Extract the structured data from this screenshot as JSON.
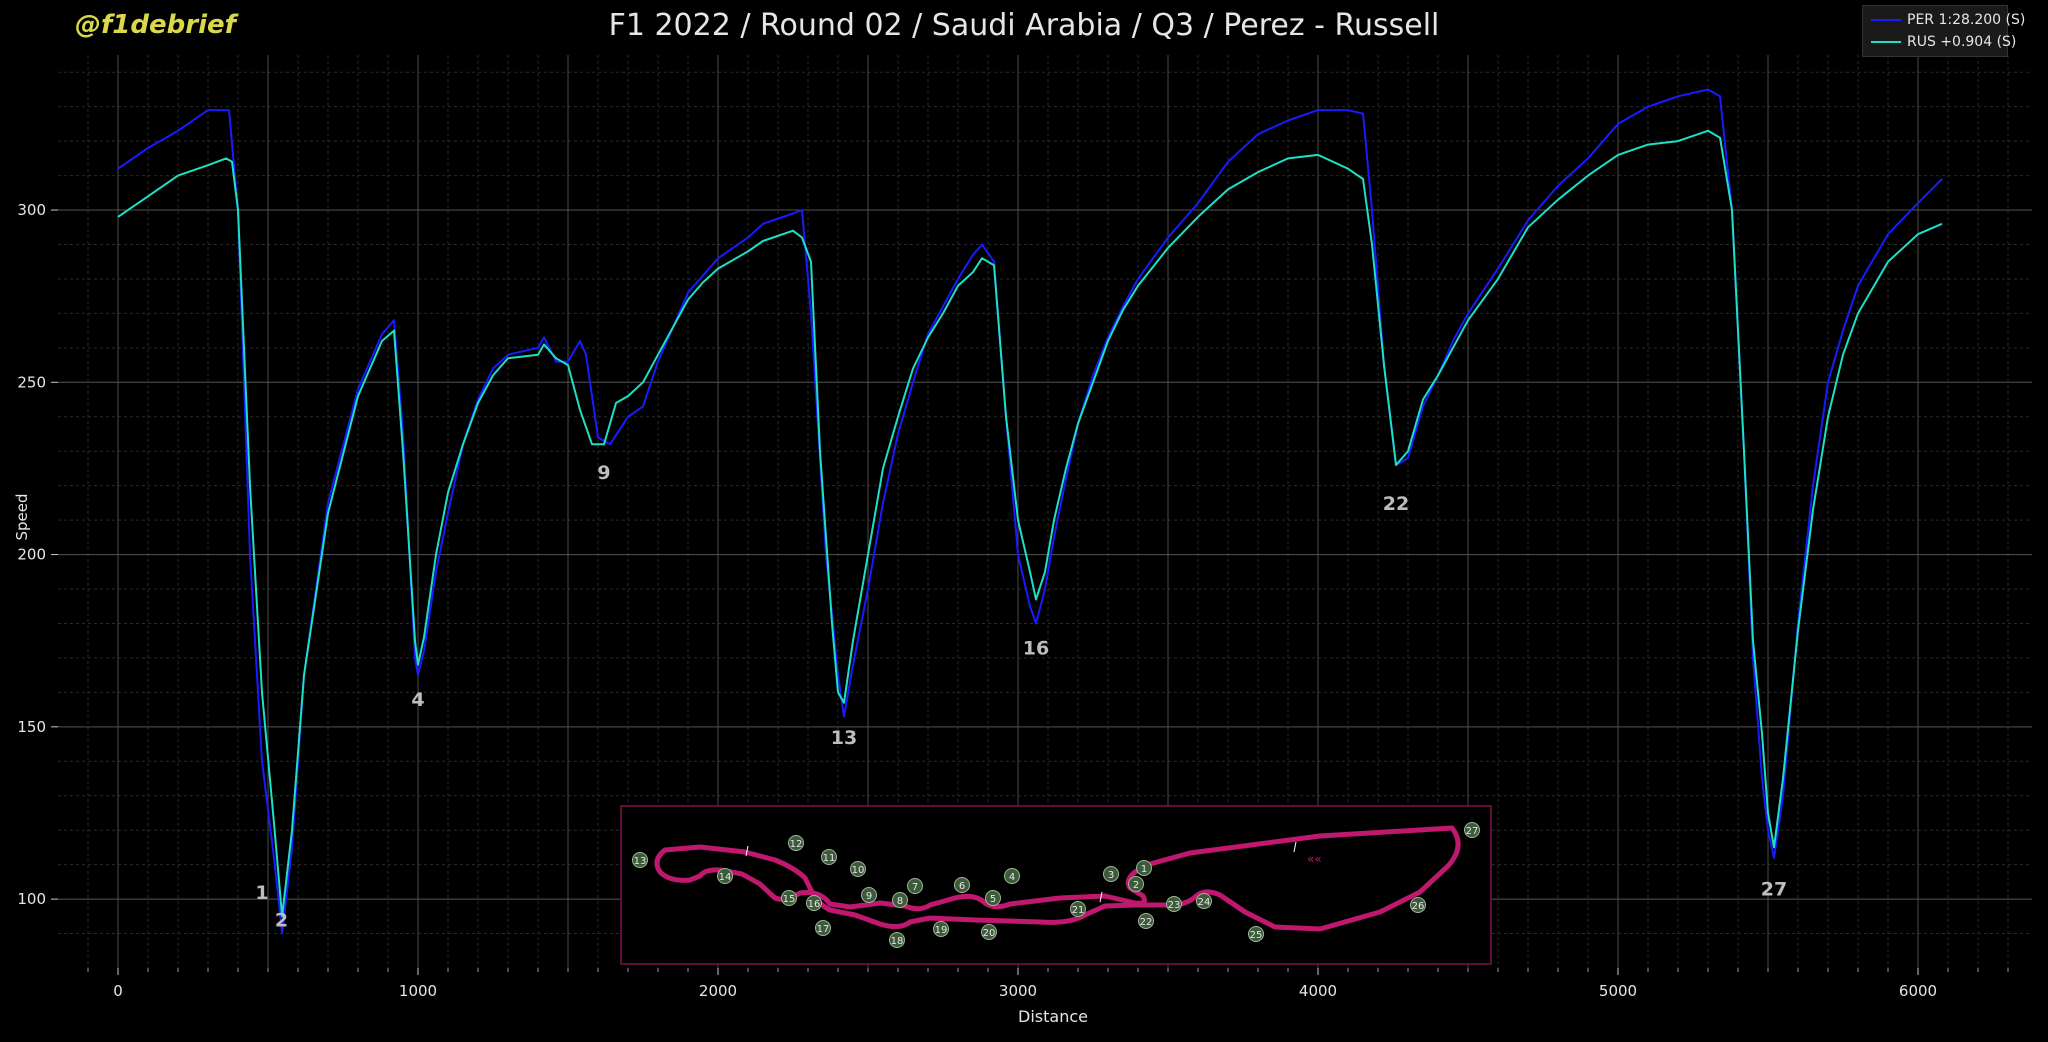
{
  "header": {
    "brand": "@f1debrief",
    "title": "F1 2022 / Round 02 / Saudi Arabia / Q3 / Perez - Russell"
  },
  "colors": {
    "background": "#000000",
    "per": "#1a1aff",
    "rus": "#1de0c4",
    "track": "#c0186f",
    "corner_marker": "#3d5a3a",
    "brand": "#d9d94a"
  },
  "chart_data": {
    "type": "line",
    "title": "F1 2022 / Round 02 / Saudi Arabia / Q3 / Perez - Russell",
    "xlabel": "Distance",
    "ylabel": "Speed",
    "xlim": [
      -200,
      6380
    ],
    "ylim": [
      80,
      345
    ],
    "xticks": [
      0,
      1000,
      2000,
      3000,
      4000,
      5000,
      6000
    ],
    "yticks": [
      100,
      150,
      200,
      250,
      300
    ],
    "grid": true,
    "legend_position": "top-right",
    "series": [
      {
        "name": "PER 1:28.200 (S)",
        "color": "#1a1aff",
        "points": [
          [
            0,
            312
          ],
          [
            100,
            318
          ],
          [
            200,
            323
          ],
          [
            300,
            329
          ],
          [
            370,
            329
          ],
          [
            400,
            300
          ],
          [
            440,
            200
          ],
          [
            480,
            140
          ],
          [
            520,
            112
          ],
          [
            547,
            90
          ],
          [
            580,
            115
          ],
          [
            620,
            165
          ],
          [
            700,
            215
          ],
          [
            800,
            248
          ],
          [
            880,
            264
          ],
          [
            920,
            268
          ],
          [
            950,
            235
          ],
          [
            990,
            170
          ],
          [
            1000,
            165
          ],
          [
            1020,
            172
          ],
          [
            1060,
            195
          ],
          [
            1100,
            212
          ],
          [
            1150,
            232
          ],
          [
            1200,
            245
          ],
          [
            1250,
            254
          ],
          [
            1300,
            258
          ],
          [
            1400,
            260
          ],
          [
            1420,
            263
          ],
          [
            1460,
            256
          ],
          [
            1500,
            256
          ],
          [
            1540,
            262
          ],
          [
            1560,
            258
          ],
          [
            1600,
            234
          ],
          [
            1640,
            232
          ],
          [
            1700,
            240
          ],
          [
            1750,
            243
          ],
          [
            1800,
            256
          ],
          [
            1850,
            266
          ],
          [
            1900,
            276
          ],
          [
            1950,
            281
          ],
          [
            2000,
            286
          ],
          [
            2100,
            292
          ],
          [
            2150,
            296
          ],
          [
            2250,
            299
          ],
          [
            2280,
            300
          ],
          [
            2310,
            270
          ],
          [
            2360,
            200
          ],
          [
            2400,
            165
          ],
          [
            2420,
            153
          ],
          [
            2450,
            168
          ],
          [
            2500,
            190
          ],
          [
            2550,
            215
          ],
          [
            2600,
            235
          ],
          [
            2650,
            250
          ],
          [
            2700,
            264
          ],
          [
            2750,
            272
          ],
          [
            2800,
            280
          ],
          [
            2850,
            287
          ],
          [
            2880,
            290
          ],
          [
            2920,
            285
          ],
          [
            2960,
            240
          ],
          [
            3000,
            200
          ],
          [
            3040,
            185
          ],
          [
            3060,
            180
          ],
          [
            3090,
            190
          ],
          [
            3120,
            205
          ],
          [
            3160,
            222
          ],
          [
            3200,
            238
          ],
          [
            3250,
            252
          ],
          [
            3300,
            263
          ],
          [
            3350,
            272
          ],
          [
            3400,
            280
          ],
          [
            3500,
            292
          ],
          [
            3600,
            302
          ],
          [
            3700,
            314
          ],
          [
            3800,
            322
          ],
          [
            3900,
            326
          ],
          [
            4000,
            329
          ],
          [
            4100,
            329
          ],
          [
            4150,
            328
          ],
          [
            4180,
            300
          ],
          [
            4220,
            255
          ],
          [
            4260,
            226
          ],
          [
            4300,
            228
          ],
          [
            4350,
            243
          ],
          [
            4400,
            252
          ],
          [
            4450,
            262
          ],
          [
            4500,
            270
          ],
          [
            4600,
            283
          ],
          [
            4700,
            297
          ],
          [
            4800,
            307
          ],
          [
            4900,
            315
          ],
          [
            5000,
            325
          ],
          [
            5100,
            330
          ],
          [
            5200,
            333
          ],
          [
            5300,
            335
          ],
          [
            5340,
            333
          ],
          [
            5380,
            300
          ],
          [
            5420,
            230
          ],
          [
            5450,
            170
          ],
          [
            5480,
            135
          ],
          [
            5500,
            120
          ],
          [
            5520,
            112
          ],
          [
            5550,
            130
          ],
          [
            5600,
            180
          ],
          [
            5650,
            220
          ],
          [
            5700,
            250
          ],
          [
            5750,
            265
          ],
          [
            5800,
            278
          ],
          [
            5900,
            293
          ],
          [
            6000,
            302
          ],
          [
            6080,
            309
          ]
        ]
      },
      {
        "name": "RUS +0.904 (S)",
        "color": "#1de0c4",
        "points": [
          [
            0,
            298
          ],
          [
            100,
            304
          ],
          [
            200,
            310
          ],
          [
            300,
            313
          ],
          [
            360,
            315
          ],
          [
            380,
            314
          ],
          [
            400,
            300
          ],
          [
            440,
            220
          ],
          [
            480,
            160
          ],
          [
            520,
            122
          ],
          [
            547,
            95
          ],
          [
            580,
            120
          ],
          [
            620,
            165
          ],
          [
            700,
            212
          ],
          [
            800,
            246
          ],
          [
            880,
            262
          ],
          [
            920,
            265
          ],
          [
            950,
            230
          ],
          [
            990,
            175
          ],
          [
            1000,
            168
          ],
          [
            1020,
            176
          ],
          [
            1060,
            200
          ],
          [
            1100,
            218
          ],
          [
            1150,
            232
          ],
          [
            1200,
            244
          ],
          [
            1250,
            252
          ],
          [
            1300,
            257
          ],
          [
            1400,
            258
          ],
          [
            1420,
            261
          ],
          [
            1460,
            257
          ],
          [
            1500,
            255
          ],
          [
            1540,
            242
          ],
          [
            1580,
            232
          ],
          [
            1620,
            232
          ],
          [
            1660,
            244
          ],
          [
            1700,
            246
          ],
          [
            1750,
            250
          ],
          [
            1800,
            258
          ],
          [
            1850,
            266
          ],
          [
            1900,
            274
          ],
          [
            1950,
            279
          ],
          [
            2000,
            283
          ],
          [
            2100,
            288
          ],
          [
            2150,
            291
          ],
          [
            2250,
            294
          ],
          [
            2280,
            292
          ],
          [
            2310,
            285
          ],
          [
            2340,
            230
          ],
          [
            2380,
            180
          ],
          [
            2400,
            160
          ],
          [
            2420,
            157
          ],
          [
            2450,
            175
          ],
          [
            2500,
            200
          ],
          [
            2550,
            225
          ],
          [
            2600,
            240
          ],
          [
            2650,
            254
          ],
          [
            2700,
            263
          ],
          [
            2750,
            270
          ],
          [
            2800,
            278
          ],
          [
            2850,
            282
          ],
          [
            2880,
            286
          ],
          [
            2920,
            284
          ],
          [
            2960,
            240
          ],
          [
            3000,
            210
          ],
          [
            3040,
            195
          ],
          [
            3060,
            187
          ],
          [
            3090,
            195
          ],
          [
            3120,
            210
          ],
          [
            3160,
            225
          ],
          [
            3200,
            238
          ],
          [
            3250,
            250
          ],
          [
            3300,
            262
          ],
          [
            3350,
            271
          ],
          [
            3400,
            278
          ],
          [
            3500,
            289
          ],
          [
            3600,
            298
          ],
          [
            3700,
            306
          ],
          [
            3800,
            311
          ],
          [
            3900,
            315
          ],
          [
            4000,
            316
          ],
          [
            4100,
            312
          ],
          [
            4150,
            309
          ],
          [
            4180,
            290
          ],
          [
            4220,
            255
          ],
          [
            4260,
            226
          ],
          [
            4300,
            230
          ],
          [
            4350,
            245
          ],
          [
            4400,
            252
          ],
          [
            4450,
            260
          ],
          [
            4500,
            268
          ],
          [
            4600,
            280
          ],
          [
            4700,
            295
          ],
          [
            4800,
            303
          ],
          [
            4900,
            310
          ],
          [
            5000,
            316
          ],
          [
            5100,
            319
          ],
          [
            5200,
            320
          ],
          [
            5300,
            323
          ],
          [
            5340,
            321
          ],
          [
            5380,
            300
          ],
          [
            5420,
            230
          ],
          [
            5450,
            175
          ],
          [
            5480,
            148
          ],
          [
            5500,
            125
          ],
          [
            5520,
            115
          ],
          [
            5550,
            135
          ],
          [
            5600,
            178
          ],
          [
            5650,
            213
          ],
          [
            5700,
            240
          ],
          [
            5750,
            258
          ],
          [
            5800,
            270
          ],
          [
            5900,
            285
          ],
          [
            6000,
            293
          ],
          [
            6080,
            296
          ]
        ]
      }
    ],
    "corner_labels": [
      {
        "label": "1",
        "x": 480,
        "y": 100
      },
      {
        "label": "2",
        "x": 545,
        "y": 92
      },
      {
        "label": "4",
        "x": 1000,
        "y": 156
      },
      {
        "label": "9",
        "x": 1620,
        "y": 222
      },
      {
        "label": "13",
        "x": 2420,
        "y": 145
      },
      {
        "label": "16",
        "x": 3060,
        "y": 171
      },
      {
        "label": "22",
        "x": 4260,
        "y": 213
      },
      {
        "label": "27",
        "x": 5520,
        "y": 101
      }
    ],
    "track_map": {
      "corner_numbers": [
        "1",
        "2",
        "3",
        "4",
        "5",
        "6",
        "7",
        "8",
        "9",
        "10",
        "11",
        "12",
        "13",
        "14",
        "15",
        "16",
        "17",
        "18",
        "19",
        "20",
        "21",
        "22",
        "23",
        "24",
        "25",
        "26",
        "27"
      ]
    }
  }
}
